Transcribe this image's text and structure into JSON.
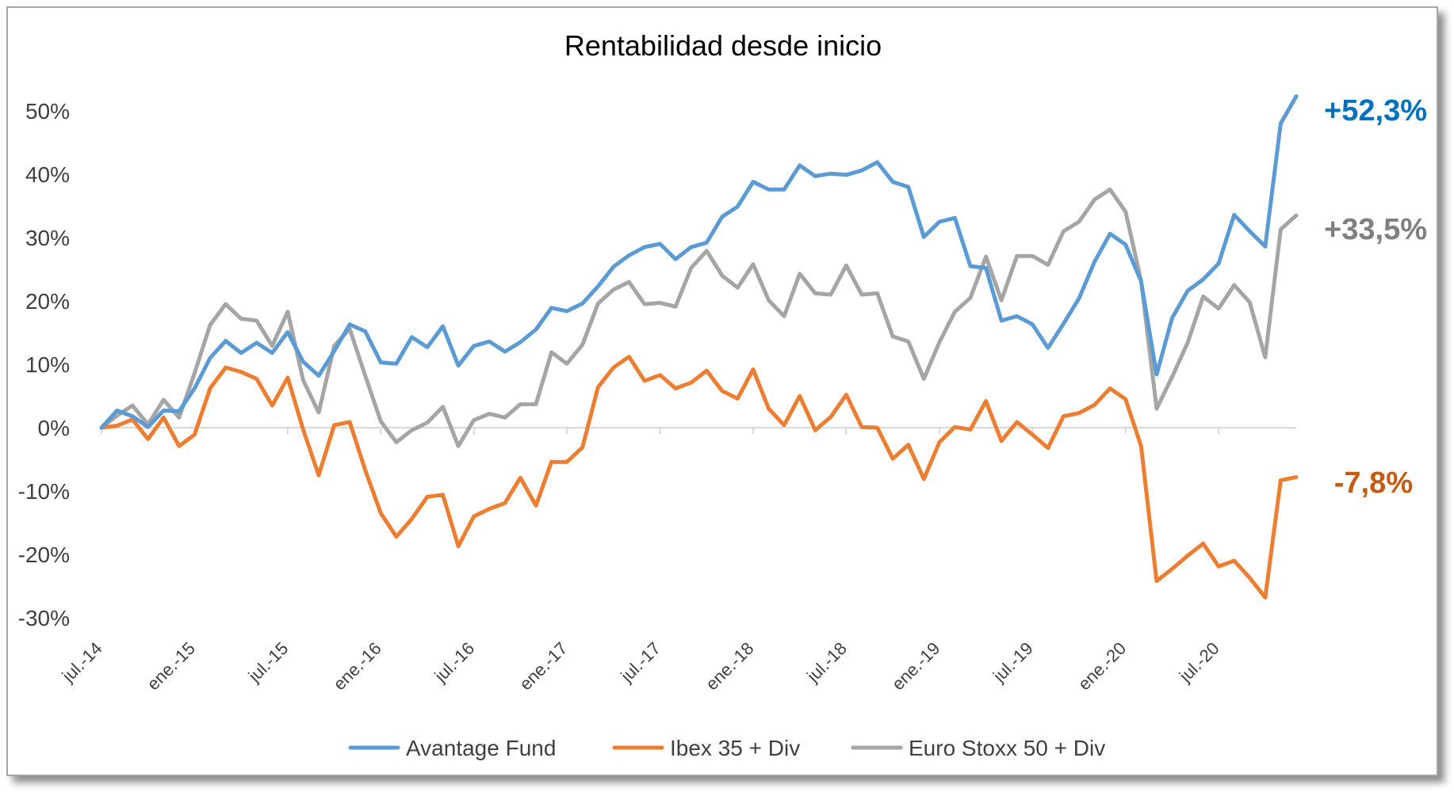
{
  "chart_data": {
    "type": "line",
    "title": "Rentabilidad desde inicio",
    "xlabel": "",
    "ylabel": "",
    "ylim": [
      -30,
      50
    ],
    "yticks": [
      "50%",
      "40%",
      "30%",
      "20%",
      "10%",
      "0%",
      "-10%",
      "-20%",
      "-30%"
    ],
    "ytick_values": [
      50,
      40,
      30,
      20,
      10,
      0,
      -10,
      -20,
      -30
    ],
    "x_tick_labels": [
      "jul.-14",
      "ene.-15",
      "jul.-15",
      "ene.-16",
      "jul.-16",
      "ene.-17",
      "jul.-17",
      "ene.-18",
      "jul.-18",
      "ene.-19",
      "jul.-19",
      "ene.-20",
      "jul.-20"
    ],
    "x_tick_every": 6,
    "x_start": "jul.-14",
    "grid": false,
    "legend_position": "bottom",
    "series": [
      {
        "name": "Avantage Fund",
        "color": "#5b9bd5",
        "end_label": "+52,3%",
        "end_label_color": "#0070c0",
        "values": [
          0.0,
          2.7,
          1.8,
          0.1,
          2.7,
          2.6,
          6.2,
          11.0,
          13.7,
          11.8,
          13.4,
          11.8,
          15.1,
          10.4,
          8.2,
          12.1,
          16.3,
          15.2,
          10.3,
          10.1,
          14.3,
          12.7,
          16.0,
          9.8,
          12.9,
          13.6,
          12.0,
          13.5,
          15.5,
          18.9,
          18.4,
          19.6,
          22.3,
          25.4,
          27.2,
          28.5,
          29.0,
          26.6,
          28.5,
          29.2,
          33.3,
          34.9,
          38.8,
          37.6,
          37.6,
          41.4,
          39.7,
          40.1,
          39.9,
          40.6,
          41.9,
          38.8,
          38.0,
          30.1,
          32.5,
          33.1,
          25.5,
          25.2,
          16.9,
          17.6,
          16.3,
          12.6,
          16.4,
          20.4,
          26.2,
          30.6,
          28.9,
          23.1,
          8.4,
          17.3,
          21.6,
          23.4,
          25.9,
          33.6,
          31.0,
          28.6,
          48.0,
          52.3
        ]
      },
      {
        "name": "Ibex 35 + Div",
        "color": "#ed7d31",
        "end_label": "-7,8%",
        "end_label_color": "#c55a11",
        "values": [
          0.0,
          0.3,
          1.3,
          -1.8,
          1.6,
          -2.9,
          -1.1,
          6.2,
          9.5,
          8.8,
          7.7,
          3.5,
          7.9,
          -0.3,
          -7.5,
          0.4,
          0.9,
          -6.7,
          -13.5,
          -17.2,
          -14.4,
          -10.9,
          -10.6,
          -18.7,
          -14.0,
          -12.8,
          -11.9,
          -7.9,
          -12.3,
          -5.4,
          -5.4,
          -3.1,
          6.4,
          9.5,
          11.2,
          7.4,
          8.3,
          6.2,
          7.1,
          9.0,
          5.8,
          4.6,
          9.2,
          3.0,
          0.4,
          5.0,
          -0.4,
          1.7,
          5.2,
          0.1,
          0.0,
          -4.9,
          -2.7,
          -8.1,
          -2.3,
          0.1,
          -0.3,
          4.2,
          -2.1,
          0.9,
          -1.1,
          -3.2,
          1.8,
          2.3,
          3.6,
          6.2,
          4.5,
          -2.9,
          -24.2,
          -22.3,
          -20.2,
          -18.3,
          -21.9,
          -21.0,
          -23.7,
          -26.8,
          -8.3,
          -7.8
        ]
      },
      {
        "name": "Euro Stoxx 50 + Div",
        "color": "#a5a5a5",
        "end_label": "+33,5%",
        "end_label_color": "#7f7f7f",
        "values": [
          0.0,
          1.9,
          3.5,
          0.5,
          4.4,
          1.6,
          8.6,
          16.2,
          19.5,
          17.2,
          16.9,
          12.9,
          18.3,
          7.5,
          2.4,
          12.9,
          15.6,
          8.2,
          1.0,
          -2.3,
          -0.4,
          0.8,
          3.3,
          -2.9,
          1.2,
          2.2,
          1.6,
          3.7,
          3.7,
          11.9,
          10.1,
          13.1,
          19.6,
          21.8,
          23.0,
          19.5,
          19.7,
          19.1,
          25.2,
          27.9,
          24.0,
          22.1,
          25.8,
          20.1,
          17.6,
          24.3,
          21.2,
          21.0,
          25.6,
          21.0,
          21.2,
          14.4,
          13.6,
          7.7,
          13.5,
          18.3,
          20.5,
          27.0,
          20.1,
          27.1,
          27.1,
          25.7,
          31.0,
          32.5,
          36.0,
          37.6,
          34.1,
          23.2,
          3.0,
          8.0,
          13.4,
          20.7,
          18.8,
          22.5,
          19.8,
          11.1,
          31.3,
          33.5
        ]
      }
    ]
  }
}
